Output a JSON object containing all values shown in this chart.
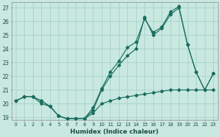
{
  "xlabel": "Humidex (Indice chaleur)",
  "background_color": "#c8e8e0",
  "grid_color": "#aad4cc",
  "line_color": "#1a6e60",
  "xlim": [
    -0.5,
    23.5
  ],
  "ylim": [
    18.8,
    27.4
  ],
  "yticks": [
    19,
    20,
    21,
    22,
    23,
    24,
    25,
    26,
    27
  ],
  "xticks": [
    0,
    1,
    2,
    3,
    4,
    5,
    6,
    7,
    8,
    9,
    10,
    11,
    12,
    13,
    14,
    15,
    16,
    17,
    18,
    19,
    20,
    21,
    22,
    23
  ],
  "series1_x": [
    0,
    1,
    2,
    3,
    4,
    5,
    6,
    7,
    8,
    9,
    10,
    11,
    12,
    13,
    14,
    15,
    16,
    17,
    18,
    19,
    20,
    21,
    22,
    23
  ],
  "series1_y": [
    20.2,
    20.5,
    20.5,
    20.0,
    19.8,
    19.1,
    18.9,
    18.9,
    18.9,
    19.3,
    20.0,
    20.2,
    20.4,
    20.5,
    20.6,
    20.7,
    20.8,
    20.9,
    21.0,
    21.0,
    21.0,
    21.0,
    21.0,
    21.0
  ],
  "series2_x": [
    0,
    1,
    2,
    3,
    4,
    5,
    6,
    7,
    8,
    9,
    10,
    11,
    12,
    13,
    14,
    15,
    16,
    17,
    18,
    19,
    20,
    21,
    22,
    23
  ],
  "series2_y": [
    20.2,
    20.5,
    20.5,
    20.2,
    19.8,
    19.1,
    18.9,
    18.9,
    18.9,
    19.5,
    21.0,
    22.0,
    22.8,
    23.5,
    24.0,
    26.3,
    25.0,
    25.5,
    26.5,
    27.0,
    24.3,
    22.3,
    21.0,
    22.2
  ],
  "series3_x": [
    0,
    1,
    2,
    3,
    4,
    5,
    6,
    7,
    8,
    9,
    10,
    11,
    12,
    13,
    14,
    15,
    16,
    17,
    18,
    19,
    20,
    21,
    22,
    23
  ],
  "series3_y": [
    20.2,
    20.5,
    20.5,
    20.2,
    19.8,
    19.1,
    18.9,
    18.9,
    18.9,
    19.7,
    21.1,
    22.3,
    23.1,
    24.1,
    24.5,
    26.2,
    25.2,
    25.6,
    26.7,
    27.1,
    24.3,
    22.3,
    21.0,
    22.2
  ]
}
